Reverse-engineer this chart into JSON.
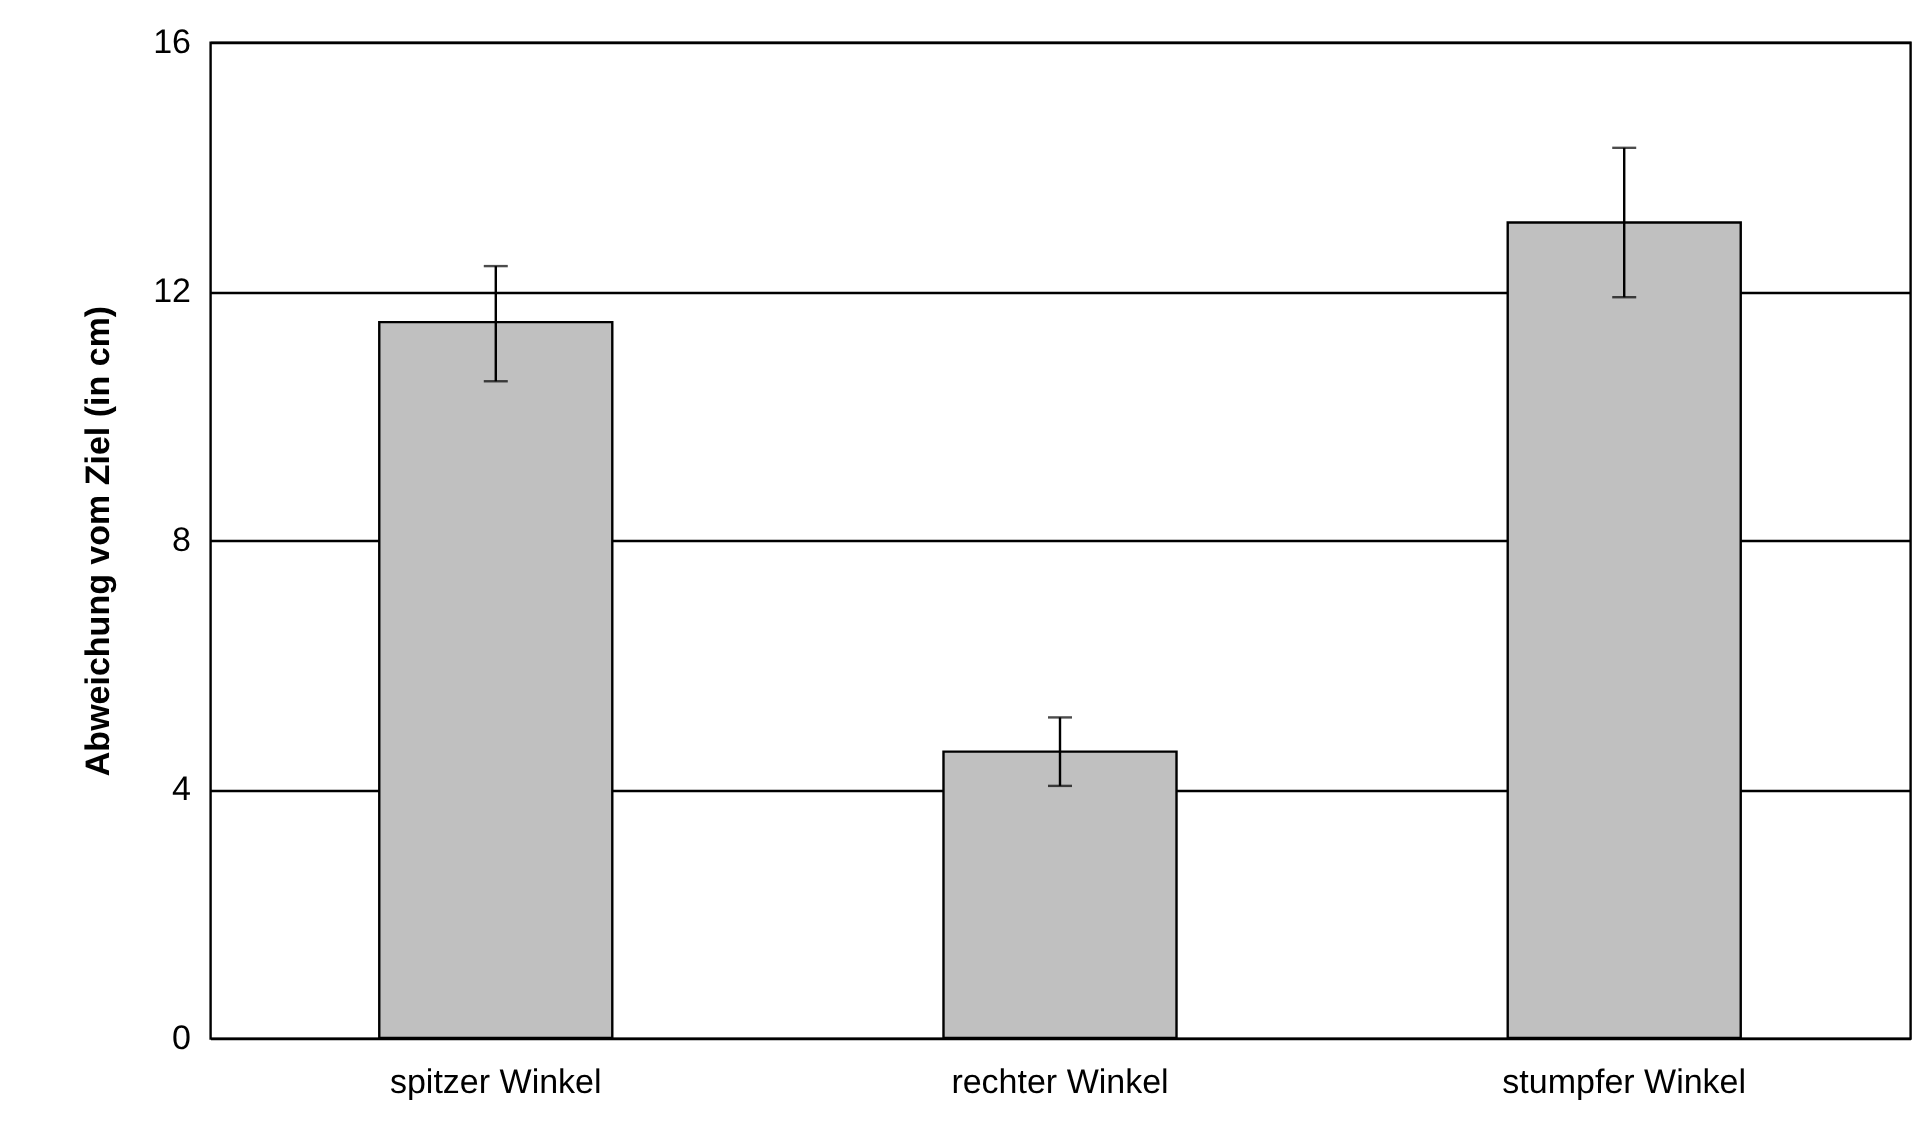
{
  "chart_data": {
    "type": "bar",
    "ylabel": "Abweichung vom Ziel (in cm)",
    "categories": [
      "spitzer Winkel",
      "rechter Winkel",
      "stumpfer Winkel"
    ],
    "values": [
      11.5,
      4.6,
      13.1
    ],
    "errors": [
      [
        10.55,
        12.4
      ],
      0.55,
      1.2
    ],
    "color": "#c0c0c0",
    "ylim": [
      0,
      16
    ],
    "yticks": [
      0,
      4,
      8,
      12,
      16
    ],
    "grid": "y"
  }
}
